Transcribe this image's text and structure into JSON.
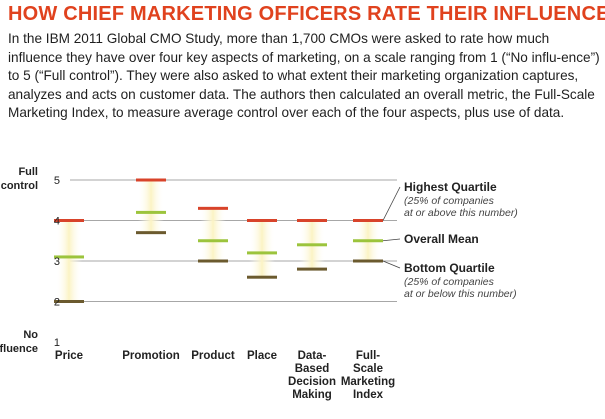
{
  "title": "HOW CHIEF MARKETING OFFICERS RATE THEIR INFLUENCE",
  "description": "In the IBM 2011 Global CMO Study, more than 1,700 CMOs were asked to rate how much influence they have over four key aspects of marketing, on a scale ranging from 1 (“No influ-ence”) to 5 (“Full control”). They were also asked to what extent their marketing organization captures, analyzes and acts on customer data. The authors then calculated an overall metric, the Full-Scale Marketing Index, to measure average control over each of the four aspects, plus use of data.",
  "colors": {
    "title": "#e0421e",
    "highest": "#d8432a",
    "mean": "#9cc43c",
    "bottom": "#6b5a2e",
    "band": "#fbf3c4",
    "grid": "#8a8a8a"
  },
  "chart_data": {
    "type": "range",
    "ylim": [
      1,
      5
    ],
    "yticks": [
      {
        "value": 5,
        "label": "5"
      },
      {
        "value": 4,
        "label": "4"
      },
      {
        "value": 3,
        "label": "3"
      },
      {
        "value": 2,
        "label": "2"
      },
      {
        "value": 1,
        "label": "1"
      }
    ],
    "top_axis_label": [
      "Full",
      "control"
    ],
    "bottom_axis_label": [
      "No",
      "influence"
    ],
    "categories": [
      [
        "Price"
      ],
      [
        "Promotion"
      ],
      [
        "Product"
      ],
      [
        "Place"
      ],
      [
        "Data-",
        "Based",
        "Decision",
        "Making"
      ],
      [
        "Full-",
        "Scale",
        "Marketing",
        "Index"
      ]
    ],
    "series": [
      {
        "name": "Highest Quartile",
        "values": [
          4.0,
          5.0,
          4.3,
          4.0,
          4.0,
          4.0
        ]
      },
      {
        "name": "Overall Mean",
        "values": [
          3.1,
          4.2,
          3.5,
          3.2,
          3.4,
          3.5
        ]
      },
      {
        "name": "Bottom Quartile",
        "values": [
          2.0,
          3.7,
          3.0,
          2.6,
          2.8,
          3.0
        ]
      }
    ],
    "legend": [
      {
        "title": "Highest Quartile",
        "note": [
          "(25% of companies",
          "at or above this number)"
        ]
      },
      {
        "title": "Overall Mean",
        "note": []
      },
      {
        "title": "Bottom Quartile",
        "note": [
          "(25% of companies",
          "at or below this number)"
        ]
      }
    ]
  }
}
